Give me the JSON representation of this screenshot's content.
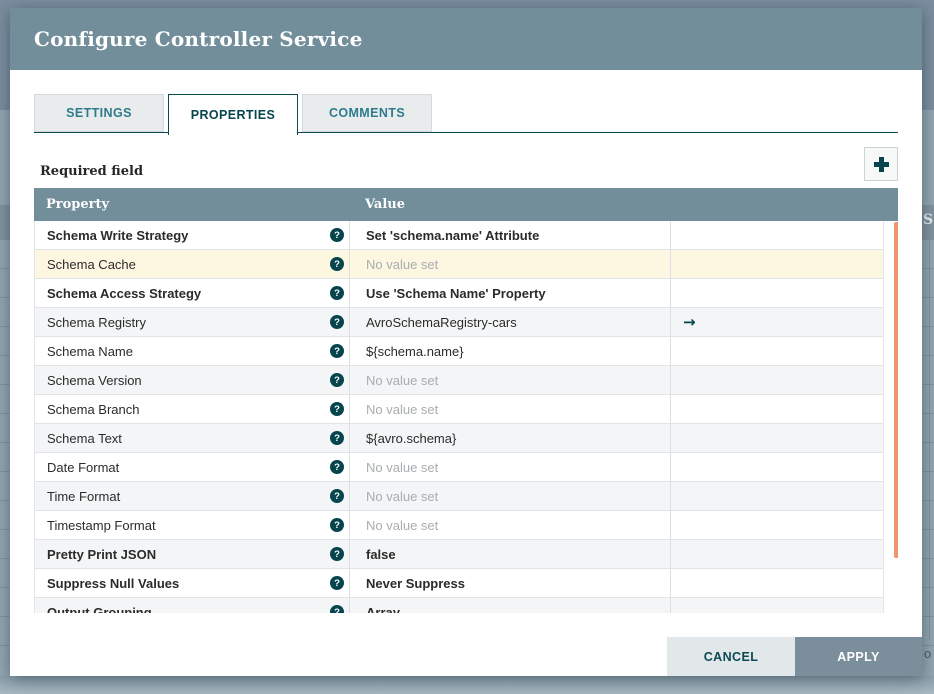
{
  "window": {
    "title": "Configure Controller Service"
  },
  "tabs": [
    {
      "label": "SETTINGS",
      "active": false
    },
    {
      "label": "PROPERTIES",
      "active": true
    },
    {
      "label": "COMMENTS",
      "active": false
    }
  ],
  "toolbar": {
    "required_field_label": "Required field"
  },
  "icons": {
    "help": "?",
    "goto_arrow": "→"
  },
  "table": {
    "columns": [
      "Property",
      "Value"
    ],
    "rows": [
      {
        "property": "Schema Write Strategy",
        "value": "Set 'schema.name' Attribute",
        "required": true,
        "value_bold": true,
        "unset": false,
        "highlight": false,
        "goto": false
      },
      {
        "property": "Schema Cache",
        "value": "No value set",
        "required": false,
        "value_bold": false,
        "unset": true,
        "highlight": true,
        "goto": false
      },
      {
        "property": "Schema Access Strategy",
        "value": "Use 'Schema Name' Property",
        "required": true,
        "value_bold": true,
        "unset": false,
        "highlight": false,
        "goto": false
      },
      {
        "property": "Schema Registry",
        "value": "AvroSchemaRegistry-cars",
        "required": false,
        "value_bold": false,
        "unset": false,
        "highlight": false,
        "goto": true
      },
      {
        "property": "Schema Name",
        "value": "${schema.name}",
        "required": false,
        "value_bold": false,
        "unset": false,
        "highlight": false,
        "goto": false
      },
      {
        "property": "Schema Version",
        "value": "No value set",
        "required": false,
        "value_bold": false,
        "unset": true,
        "highlight": false,
        "goto": false
      },
      {
        "property": "Schema Branch",
        "value": "No value set",
        "required": false,
        "value_bold": false,
        "unset": true,
        "highlight": false,
        "goto": false
      },
      {
        "property": "Schema Text",
        "value": "${avro.schema}",
        "required": false,
        "value_bold": false,
        "unset": false,
        "highlight": false,
        "goto": false
      },
      {
        "property": "Date Format",
        "value": "No value set",
        "required": false,
        "value_bold": false,
        "unset": true,
        "highlight": false,
        "goto": false
      },
      {
        "property": "Time Format",
        "value": "No value set",
        "required": false,
        "value_bold": false,
        "unset": true,
        "highlight": false,
        "goto": false
      },
      {
        "property": "Timestamp Format",
        "value": "No value set",
        "required": false,
        "value_bold": false,
        "unset": true,
        "highlight": false,
        "goto": false
      },
      {
        "property": "Pretty Print JSON",
        "value": "false",
        "required": true,
        "value_bold": true,
        "unset": false,
        "highlight": false,
        "goto": false
      },
      {
        "property": "Suppress Null Values",
        "value": "Never Suppress",
        "required": true,
        "value_bold": true,
        "unset": false,
        "highlight": false,
        "goto": false
      },
      {
        "property": "Output Grouping",
        "value": "Array",
        "required": true,
        "value_bold": true,
        "unset": false,
        "highlight": false,
        "goto": false
      }
    ]
  },
  "footer": {
    "cancel_label": "CANCEL",
    "apply_label": "APPLY"
  },
  "background": {
    "partial_header_text": "S",
    "partial_bottom_text": "o"
  },
  "colors": {
    "titlebar_bg": "#728e9b",
    "table_header_bg": "#728e9b",
    "accent_dark": "#07454d",
    "highlight_row": "#fdf7e2",
    "alt_row": "#f3f5f6",
    "scrollbar_thumb": "#f0936f",
    "apply_button_bg": "#7b8e9b",
    "cancel_button_bg": "#e2e7e9",
    "unset_text": "#a9adb0",
    "backdrop": "#93a7b3"
  }
}
